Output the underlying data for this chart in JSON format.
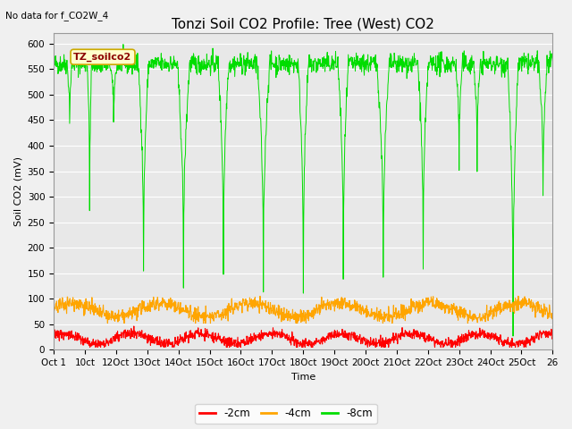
{
  "title": "Tonzi Soil CO2 Profile: Tree (West) CO2",
  "top_left_text": "No data for f_CO2W_4",
  "ylabel": "Soil CO2 (mV)",
  "xlabel": "Time",
  "legend_label": "TZ_soilco2",
  "series_labels": [
    "-2cm",
    "-4cm",
    "-8cm"
  ],
  "series_colors": [
    "#ff0000",
    "#ffa500",
    "#00dd00"
  ],
  "ylim": [
    0,
    620
  ],
  "yticks": [
    0,
    50,
    100,
    150,
    200,
    250,
    300,
    350,
    400,
    450,
    500,
    550,
    600
  ],
  "xtick_labels": [
    "Oct 1",
    "10ct",
    "12Oct",
    "13Oct",
    "14Oct",
    "15Oct",
    "16Oct",
    "17Oct",
    "18Oct",
    "19Oct",
    "20Oct",
    "21Oct",
    "22Oct",
    "23Oct",
    "24Oct",
    "25Oct",
    "26"
  ],
  "n_points": 1500,
  "background_color": "#f0f0f0",
  "plot_bg_color": "#e8e8e8",
  "title_fontsize": 11,
  "label_fontsize": 8,
  "tick_fontsize": 7.5
}
